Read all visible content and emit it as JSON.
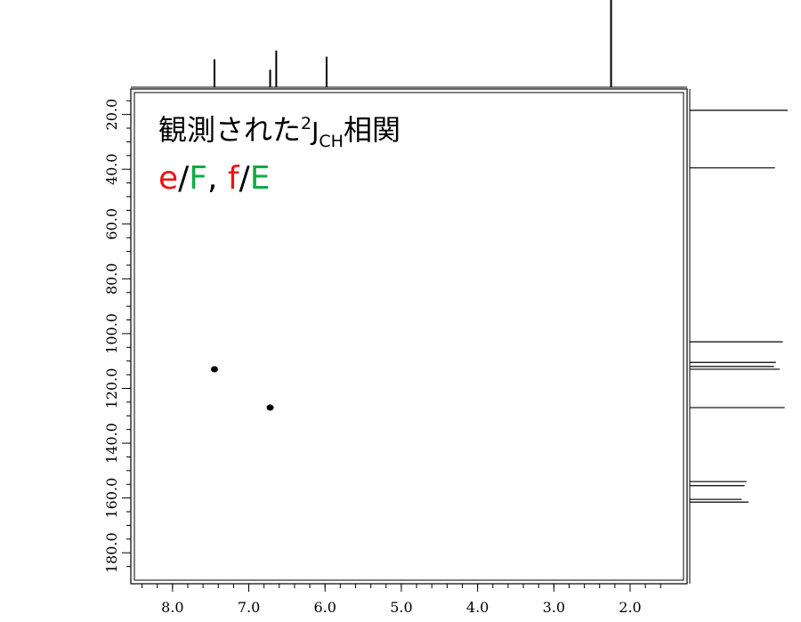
{
  "chart_data": {
    "type": "scatter",
    "title": "",
    "xlabel": "",
    "ylabel": "",
    "x_axis": {
      "reversed": true,
      "lim": [
        8.5,
        1.3
      ],
      "ticks": [
        8.0,
        7.0,
        6.0,
        5.0,
        4.0,
        3.0,
        2.0
      ],
      "tick_labels": [
        "8.0",
        "7.0",
        "6.0",
        "5.0",
        "4.0",
        "3.0",
        "2.0"
      ]
    },
    "y_axis": {
      "reversed": true,
      "lim": [
        12,
        190
      ],
      "ticks": [
        20,
        40,
        60,
        80,
        100,
        120,
        140,
        160,
        180
      ],
      "tick_labels": [
        "20.0",
        "40.0",
        "60.0",
        "80.0",
        "100.0",
        "120.0",
        "140.0",
        "160.0",
        "180.0"
      ]
    },
    "points": [
      {
        "x": 7.45,
        "y": 113.0
      },
      {
        "x": 6.72,
        "y": 127.0
      }
    ],
    "top_projection_peaks": [
      {
        "x": 7.45,
        "height": 0.32
      },
      {
        "x": 6.72,
        "height": 0.2
      },
      {
        "x": 6.64,
        "height": 0.42
      },
      {
        "x": 5.98,
        "height": 0.35
      },
      {
        "x": 2.25,
        "height": 1.0
      }
    ],
    "right_projection_peaks": [
      {
        "y": 18.5,
        "height": 1.0
      },
      {
        "y": 39.5,
        "height": 0.87
      },
      {
        "y": 103.0,
        "height": 0.95
      },
      {
        "y": 110.5,
        "height": 0.88
      },
      {
        "y": 112.0,
        "height": 0.86
      },
      {
        "y": 113.0,
        "height": 0.92
      },
      {
        "y": 127.0,
        "height": 0.97
      },
      {
        "y": 154.0,
        "height": 0.58
      },
      {
        "y": 155.5,
        "height": 0.56
      },
      {
        "y": 160.5,
        "height": 0.53
      },
      {
        "y": 161.5,
        "height": 0.6
      }
    ],
    "grid": false
  },
  "annotation": {
    "title_main": "観測された",
    "title_superscript": "2",
    "title_J": "J",
    "title_subscript": "CH",
    "title_tail": "相関",
    "pair1_a": "e",
    "pair1_sep": "/",
    "pair1_b": "F",
    "pair_comma": ", ",
    "pair2_a": "f",
    "pair2_sep": "/",
    "pair2_b": "E",
    "color_red": "#ee1111",
    "color_green": "#11aa44"
  }
}
